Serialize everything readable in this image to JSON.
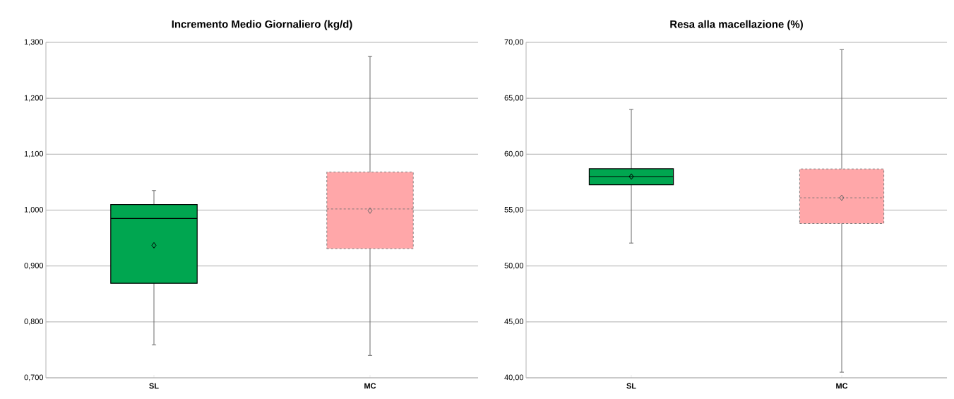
{
  "chart_data": [
    {
      "type": "box",
      "title": "Incremento Medio Giornaliero (kg/d)",
      "categories": [
        "SL",
        "MC"
      ],
      "series": [
        {
          "color": "#00a650",
          "line_style": "solid",
          "boxes": [
            {
              "low": 0.759,
              "q1": 0.869,
              "median": 0.985,
              "q3": 1.01,
              "high": 1.035,
              "mean": 0.937
            },
            null
          ]
        },
        {
          "color": "#ffa7a9",
          "line_style": "dashed",
          "boxes": [
            null,
            {
              "low": 0.74,
              "q1": 0.931,
              "median": 1.002,
              "q3": 1.068,
              "high": 1.275,
              "mean": 0.999
            }
          ]
        }
      ],
      "ylim": [
        0.7,
        1.3
      ],
      "yticks": [
        {
          "value": 0.7,
          "label": "0,700"
        },
        {
          "value": 0.8,
          "label": "0,800"
        },
        {
          "value": 0.9,
          "label": "0,900"
        },
        {
          "value": 1.0,
          "label": "1,000"
        },
        {
          "value": 1.1,
          "label": "1,100"
        },
        {
          "value": 1.2,
          "label": "1,200"
        },
        {
          "value": 1.3,
          "label": "1,300"
        }
      ],
      "grid": "y",
      "marker": "diamond"
    },
    {
      "type": "box",
      "title": "Resa alla macellazione (%)",
      "categories": [
        "SL",
        "MC"
      ],
      "series": [
        {
          "color": "#00a650",
          "line_style": "solid",
          "boxes": [
            {
              "low": 52.05,
              "q1": 57.27,
              "median": 58.0,
              "q3": 58.7,
              "high": 64.0,
              "mean": 58.0
            },
            null
          ]
        },
        {
          "color": "#ffa7a9",
          "line_style": "dashed",
          "boxes": [
            null,
            {
              "low": 40.5,
              "q1": 53.8,
              "median": 56.1,
              "q3": 58.68,
              "high": 69.35,
              "mean": 56.1
            }
          ]
        }
      ],
      "ylim": [
        40,
        70
      ],
      "yticks": [
        {
          "value": 40,
          "label": "40,00"
        },
        {
          "value": 45,
          "label": "45,00"
        },
        {
          "value": 50,
          "label": "50,00"
        },
        {
          "value": 55,
          "label": "55,00"
        },
        {
          "value": 60,
          "label": "60,00"
        },
        {
          "value": 65,
          "label": "65,00"
        },
        {
          "value": 70,
          "label": "70,00"
        }
      ],
      "grid": "y",
      "marker": "diamond"
    }
  ]
}
